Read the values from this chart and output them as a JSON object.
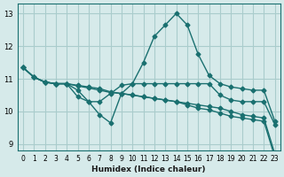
{
  "xlabel": "Humidex (Indice chaleur)",
  "ylabel": "",
  "bg_color": "#d6eaea",
  "grid_color": "#aacccc",
  "line_color": "#1a7070",
  "xlim": [
    -0.5,
    23.5
  ],
  "ylim": [
    8.8,
    13.3
  ],
  "yticks": [
    9,
    10,
    11,
    12,
    13
  ],
  "xticks": [
    0,
    1,
    2,
    3,
    4,
    5,
    6,
    7,
    8,
    9,
    10,
    11,
    12,
    13,
    14,
    15,
    16,
    17,
    18,
    19,
    20,
    21,
    22,
    23
  ],
  "series": [
    [
      11.35,
      11.05,
      10.9,
      10.85,
      10.85,
      10.45,
      10.3,
      9.9,
      9.65,
      10.55,
      10.85,
      11.5,
      12.3,
      12.65,
      13.0,
      12.65,
      11.75,
      11.1,
      10.85,
      10.75,
      10.7,
      10.65,
      10.65,
      9.7
    ],
    [
      11.35,
      11.05,
      10.9,
      10.85,
      10.85,
      10.65,
      10.3,
      10.3,
      10.55,
      10.8,
      10.85,
      10.85,
      10.85,
      10.85,
      10.85,
      10.85,
      10.85,
      10.85,
      10.5,
      10.35,
      10.3,
      10.3,
      10.3,
      9.6
    ],
    [
      11.35,
      11.05,
      10.9,
      10.85,
      10.85,
      10.8,
      10.75,
      10.7,
      10.6,
      10.55,
      10.5,
      10.45,
      10.4,
      10.35,
      10.3,
      10.25,
      10.2,
      10.15,
      10.1,
      10.0,
      9.9,
      9.85,
      9.8,
      8.7
    ],
    [
      11.35,
      11.05,
      10.9,
      10.85,
      10.85,
      10.78,
      10.72,
      10.65,
      10.58,
      10.55,
      10.5,
      10.45,
      10.4,
      10.35,
      10.3,
      10.2,
      10.1,
      10.05,
      9.95,
      9.85,
      9.8,
      9.75,
      9.7,
      8.6
    ]
  ]
}
